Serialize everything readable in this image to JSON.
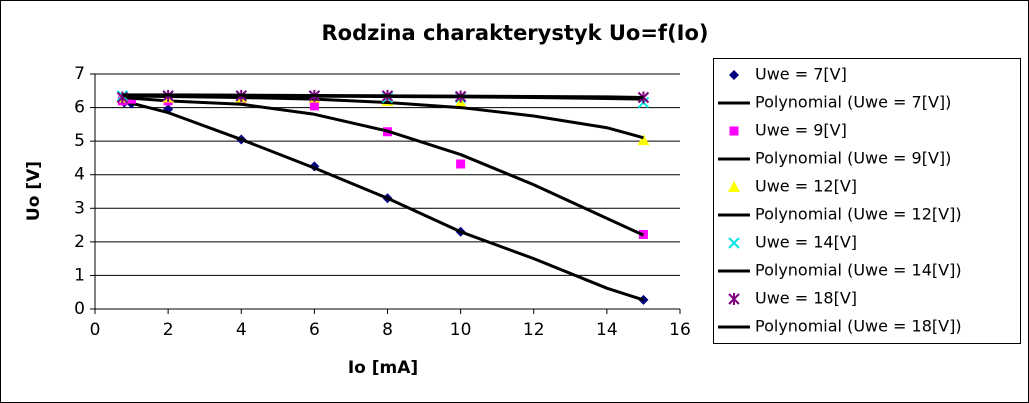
{
  "chart_data": {
    "type": "scatter",
    "title": "Rodzina charakterystyk Uo=f(Io)",
    "x_label": "Io [mA]",
    "y_label": "Uo [V]",
    "xlim": [
      0,
      16
    ],
    "xticks": [
      0,
      2,
      4,
      6,
      8,
      10,
      12,
      14,
      16
    ],
    "ylim": [
      0,
      7
    ],
    "yticks": [
      0,
      1,
      2,
      3,
      4,
      5,
      6,
      7
    ],
    "grid": true,
    "legend": "right",
    "series": [
      {
        "name": "Uwe = 7[V]",
        "marker": "diamond",
        "color": "#000080",
        "x": [
          0.8,
          1,
          2,
          4,
          6,
          8,
          10,
          15
        ],
        "values": [
          6.15,
          6.12,
          5.95,
          5.05,
          4.25,
          3.3,
          2.3,
          0.27
        ]
      },
      {
        "name": "Polynomial (Uwe = 7[V])",
        "color": "#000000",
        "x": [
          0.75,
          2,
          4,
          6,
          8,
          10,
          12,
          14,
          15
        ],
        "values": [
          6.2,
          5.85,
          5.05,
          4.2,
          3.3,
          2.3,
          1.5,
          0.62,
          0.27
        ]
      },
      {
        "name": "Uwe = 9[V]",
        "marker": "square",
        "color": "#ff00ff",
        "x": [
          0.75,
          1,
          2,
          4,
          6,
          8,
          10,
          15
        ],
        "values": [
          6.2,
          6.25,
          6.2,
          6.25,
          6.05,
          5.28,
          4.32,
          2.22
        ]
      },
      {
        "name": "Polynomial (Uwe = 9[V])",
        "color": "#000000",
        "x": [
          0.75,
          2,
          4,
          6,
          8,
          10,
          12,
          14,
          15
        ],
        "values": [
          6.3,
          6.2,
          6.1,
          5.8,
          5.3,
          4.6,
          3.7,
          2.7,
          2.2
        ]
      },
      {
        "name": "Uwe = 12[V]",
        "marker": "triangle",
        "color": "#ffff00",
        "x": [
          0.75,
          2,
          4,
          6,
          8,
          10,
          15
        ],
        "values": [
          6.3,
          6.3,
          6.3,
          6.3,
          6.2,
          6.15,
          5.03
        ]
      },
      {
        "name": "Polynomial (Uwe = 12[V])",
        "color": "#000000",
        "x": [
          0.75,
          2,
          4,
          6,
          8,
          10,
          12,
          14,
          15
        ],
        "values": [
          6.35,
          6.33,
          6.3,
          6.25,
          6.15,
          6.0,
          5.75,
          5.4,
          5.1
        ]
      },
      {
        "name": "Uwe = 14[V]",
        "marker": "x",
        "color": "#00e5e5",
        "x": [
          0.75,
          2,
          4,
          6,
          8,
          10,
          15
        ],
        "values": [
          6.35,
          6.35,
          6.35,
          6.35,
          6.3,
          6.3,
          6.15
        ]
      },
      {
        "name": "Polynomial (Uwe = 14[V])",
        "color": "#000000",
        "x": [
          0.75,
          2,
          4,
          6,
          8,
          10,
          12,
          14,
          15
        ],
        "values": [
          6.35,
          6.35,
          6.35,
          6.34,
          6.33,
          6.32,
          6.3,
          6.27,
          6.25
        ]
      },
      {
        "name": "Uwe = 18[V]",
        "marker": "asterisk",
        "color": "#800080",
        "x": [
          0.75,
          2,
          4,
          6,
          8,
          10,
          15
        ],
        "values": [
          6.3,
          6.35,
          6.35,
          6.35,
          6.35,
          6.33,
          6.3
        ]
      },
      {
        "name": "Polynomial (Uwe = 18[V])",
        "color": "#000000",
        "x": [
          0.75,
          2,
          4,
          6,
          8,
          10,
          12,
          14,
          15
        ],
        "values": [
          6.38,
          6.38,
          6.37,
          6.36,
          6.35,
          6.34,
          6.33,
          6.32,
          6.3
        ]
      }
    ]
  }
}
